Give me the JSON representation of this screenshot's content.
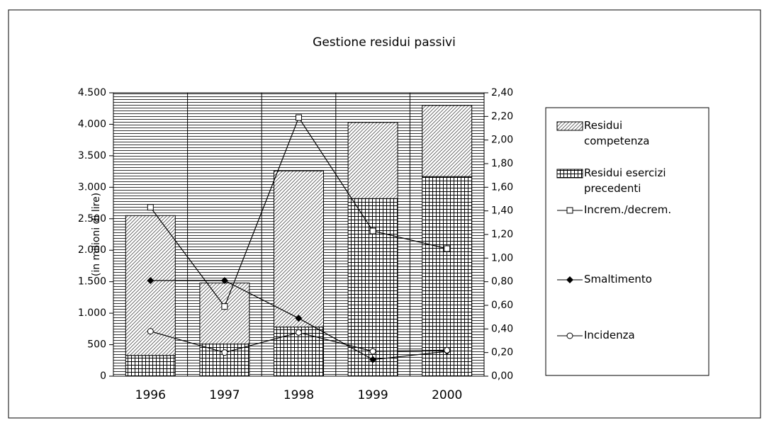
{
  "chart_data": {
    "type": "bar",
    "title": "Gestione residui passivi",
    "y_label": "(in milioni di lire)",
    "categories": [
      "1996",
      "1997",
      "1998",
      "1999",
      "2000"
    ],
    "stacked": true,
    "series": [
      {
        "name": "Residui esercizi precedenti",
        "type": "bar",
        "color": "#000000",
        "values": [
          330,
          510,
          780,
          2820,
          3170
        ]
      },
      {
        "name": "Residui competenza",
        "type": "bar",
        "color": "#000000",
        "values": [
          2220,
          970,
          2480,
          1210,
          1130
        ]
      },
      {
        "name": "Increm./decrem.",
        "type": "line",
        "axis": "y2",
        "marker": "square",
        "color": "#000000",
        "values": [
          1.43,
          0.59,
          2.19,
          1.23,
          1.08
        ]
      },
      {
        "name": "Smaltimento",
        "type": "line",
        "axis": "y2",
        "marker": "diamond",
        "color": "#000000",
        "values": [
          0.81,
          0.81,
          0.49,
          0.14,
          0.21
        ]
      },
      {
        "name": "Incidenza",
        "type": "line",
        "axis": "y2",
        "marker": "circle",
        "color": "#000000",
        "values": [
          0.38,
          0.2,
          0.37,
          0.21,
          0.22
        ]
      }
    ],
    "legend_order": [
      1,
      0,
      2,
      3,
      4
    ],
    "ylim": [
      0,
      4500
    ],
    "yticks": [
      0,
      500,
      {
        "value": 1000,
        "label": "1.000"
      },
      {
        "value": 1500,
        "label": "1.500"
      },
      {
        "value": 2000,
        "label": "2.000"
      },
      {
        "value": 2500,
        "label": "2.500"
      },
      {
        "value": 3000,
        "label": "3.000"
      },
      {
        "value": 3500,
        "label": "3.500"
      },
      {
        "value": 4000,
        "label": "4.000"
      },
      {
        "value": 4500,
        "label": "4.500"
      }
    ],
    "y2lim": [
      0,
      2.4
    ],
    "y2ticks": [
      {
        "value": 0,
        "label": "0,00"
      },
      {
        "value": 0.2,
        "label": "0,20"
      },
      {
        "value": 0.4,
        "label": "0,40"
      },
      {
        "value": 0.6,
        "label": "0,60"
      },
      {
        "value": 0.8,
        "label": "0,80"
      },
      {
        "value": 1,
        "label": "1,00"
      },
      {
        "value": 1.2,
        "label": "1,20"
      },
      {
        "value": 1.4,
        "label": "1,40"
      },
      {
        "value": 1.6,
        "label": "1,60"
      },
      {
        "value": 1.8,
        "label": "1,80"
      },
      {
        "value": 2,
        "label": "2,00"
      },
      {
        "value": 2.2,
        "label": "2,20"
      },
      {
        "value": 2.4,
        "label": "2,40"
      }
    ],
    "legend": "right"
  }
}
